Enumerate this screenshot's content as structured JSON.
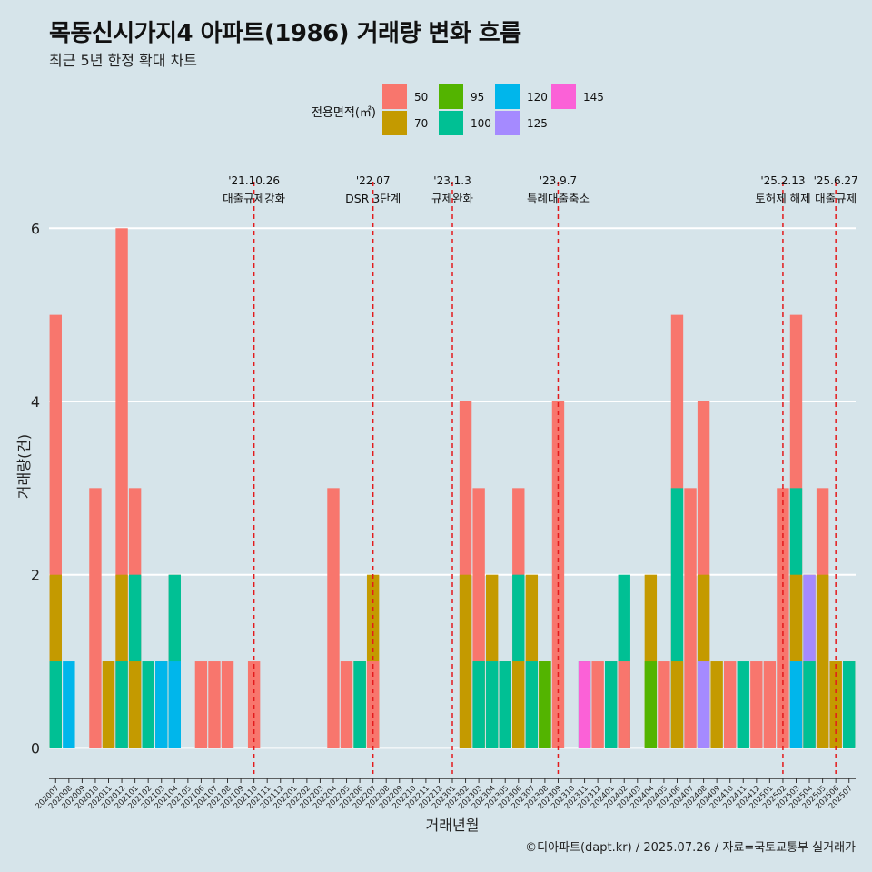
{
  "chart_data": {
    "type": "bar",
    "title": "목동신시가지4 아파트(1986) 거래량 변화 흐름",
    "subtitle": "최근 5년 한정 확대 차트",
    "xlabel": "거래년월",
    "ylabel": "거래량(건)",
    "caption": "©디아파트(dapt.kr) / 2025.07.26 / 자료=국토교통부 실거래가",
    "ylim": [
      -0.3,
      6.8
    ],
    "yticks": [
      0,
      2,
      4,
      6
    ],
    "legend": {
      "title": "전용면적(㎡)",
      "position": "top",
      "items": [
        {
          "label": "50",
          "color": "#f8766d"
        },
        {
          "label": "70",
          "color": "#c49a00"
        },
        {
          "label": "95",
          "color": "#53b400"
        },
        {
          "label": "100",
          "color": "#00c094"
        },
        {
          "label": "120",
          "color": "#00b6eb"
        },
        {
          "label": "125",
          "color": "#a58aff"
        },
        {
          "label": "145",
          "color": "#fb61d7"
        }
      ]
    },
    "categories": [
      "202007",
      "202008",
      "202009",
      "202010",
      "202011",
      "202012",
      "202101",
      "202102",
      "202103",
      "202104",
      "202105",
      "202106",
      "202107",
      "202108",
      "202109",
      "202110",
      "202111",
      "202112",
      "202201",
      "202202",
      "202203",
      "202204",
      "202205",
      "202206",
      "202207",
      "202208",
      "202209",
      "202210",
      "202211",
      "202212",
      "202301",
      "202302",
      "202303",
      "202304",
      "202305",
      "202306",
      "202307",
      "202308",
      "202309",
      "202310",
      "202311",
      "202312",
      "202401",
      "202402",
      "202403",
      "202404",
      "202405",
      "202406",
      "202407",
      "202408",
      "202409",
      "202410",
      "202411",
      "202412",
      "202501",
      "202502",
      "202503",
      "202504",
      "202505",
      "202506",
      "202507"
    ],
    "bars": [
      {
        "month": "202007",
        "values": [
          [
            "50",
            5
          ],
          [
            "70",
            2
          ],
          [
            "100",
            1
          ]
        ]
      },
      {
        "month": "202008",
        "values": [
          [
            "120",
            1
          ]
        ]
      },
      {
        "month": "202010",
        "values": [
          [
            "50",
            3
          ]
        ]
      },
      {
        "month": "202011",
        "values": [
          [
            "50",
            1
          ],
          [
            "70",
            1
          ]
        ]
      },
      {
        "month": "202012",
        "values": [
          [
            "50",
            6
          ],
          [
            "70",
            2
          ],
          [
            "100",
            1
          ]
        ]
      },
      {
        "month": "202101",
        "values": [
          [
            "50",
            3
          ],
          [
            "70",
            1
          ],
          [
            "100",
            2
          ]
        ]
      },
      {
        "month": "202102",
        "values": [
          [
            "100",
            1
          ]
        ]
      },
      {
        "month": "202103",
        "values": [
          [
            "50",
            1
          ],
          [
            "70",
            1
          ],
          [
            "120",
            1
          ]
        ]
      },
      {
        "month": "202104",
        "values": [
          [
            "50",
            2
          ],
          [
            "100",
            2
          ],
          [
            "120",
            1
          ]
        ]
      },
      {
        "month": "202106",
        "values": [
          [
            "50",
            1
          ]
        ]
      },
      {
        "month": "202107",
        "values": [
          [
            "50",
            1
          ]
        ]
      },
      {
        "month": "202108",
        "values": [
          [
            "50",
            1
          ]
        ]
      },
      {
        "month": "202110",
        "values": [
          [
            "50",
            1
          ]
        ]
      },
      {
        "month": "202204",
        "values": [
          [
            "50",
            3
          ]
        ]
      },
      {
        "month": "202205",
        "values": [
          [
            "50",
            1
          ]
        ]
      },
      {
        "month": "202206",
        "values": [
          [
            "70",
            1
          ],
          [
            "95",
            1
          ],
          [
            "100",
            1
          ]
        ]
      },
      {
        "month": "202207",
        "values": [
          [
            "50",
            1
          ],
          [
            "70",
            2
          ]
        ]
      },
      {
        "month": "202302",
        "values": [
          [
            "50",
            4
          ],
          [
            "70",
            2
          ]
        ]
      },
      {
        "month": "202303",
        "values": [
          [
            "50",
            3
          ],
          [
            "70",
            1
          ],
          [
            "100",
            1
          ]
        ]
      },
      {
        "month": "202304",
        "values": [
          [
            "50",
            1
          ],
          [
            "70",
            2
          ],
          [
            "100",
            1
          ]
        ]
      },
      {
        "month": "202305",
        "values": [
          [
            "50",
            1
          ],
          [
            "70",
            1
          ],
          [
            "100",
            1
          ]
        ]
      },
      {
        "month": "202306",
        "values": [
          [
            "50",
            3
          ],
          [
            "70",
            1
          ],
          [
            "100",
            2
          ]
        ]
      },
      {
        "month": "202307",
        "values": [
          [
            "50",
            1
          ],
          [
            "70",
            2
          ],
          [
            "100",
            1
          ]
        ]
      },
      {
        "month": "202308",
        "values": [
          [
            "50",
            1
          ],
          [
            "70",
            1
          ],
          [
            "95",
            1
          ]
        ]
      },
      {
        "month": "202309",
        "values": [
          [
            "50",
            4
          ]
        ]
      },
      {
        "month": "202311",
        "values": [
          [
            "100",
            1
          ],
          [
            "145",
            1
          ]
        ]
      },
      {
        "month": "202312",
        "values": [
          [
            "50",
            1
          ]
        ]
      },
      {
        "month": "202401",
        "values": [
          [
            "50",
            1
          ],
          [
            "100",
            1
          ]
        ]
      },
      {
        "month": "202402",
        "values": [
          [
            "50",
            1
          ],
          [
            "100",
            2
          ]
        ]
      },
      {
        "month": "202404",
        "values": [
          [
            "70",
            2
          ],
          [
            "95",
            1
          ]
        ]
      },
      {
        "month": "202405",
        "values": [
          [
            "50",
            1
          ]
        ]
      },
      {
        "month": "202406",
        "values": [
          [
            "50",
            5
          ],
          [
            "70",
            1
          ],
          [
            "100",
            3
          ]
        ]
      },
      {
        "month": "202407",
        "values": [
          [
            "50",
            3
          ]
        ]
      },
      {
        "month": "202408",
        "values": [
          [
            "50",
            4
          ],
          [
            "70",
            2
          ],
          [
            "125",
            1
          ]
        ]
      },
      {
        "month": "202409",
        "values": [
          [
            "70",
            1
          ]
        ]
      },
      {
        "month": "202410",
        "values": [
          [
            "50",
            1
          ]
        ]
      },
      {
        "month": "202411",
        "values": [
          [
            "100",
            1
          ]
        ]
      },
      {
        "month": "202412",
        "values": [
          [
            "50",
            1
          ]
        ]
      },
      {
        "month": "202501",
        "values": [
          [
            "50",
            1
          ]
        ]
      },
      {
        "month": "202502",
        "values": [
          [
            "50",
            3
          ]
        ]
      },
      {
        "month": "202503",
        "values": [
          [
            "50",
            5
          ],
          [
            "70",
            2
          ],
          [
            "100",
            3
          ],
          [
            "120",
            1
          ]
        ]
      },
      {
        "month": "202504",
        "values": [
          [
            "50",
            1
          ],
          [
            "70",
            2
          ],
          [
            "100",
            1
          ],
          [
            "125",
            2
          ]
        ]
      },
      {
        "month": "202505",
        "values": [
          [
            "50",
            3
          ],
          [
            "70",
            2
          ]
        ]
      },
      {
        "month": "202506",
        "values": [
          [
            "50",
            1
          ],
          [
            "70",
            1
          ]
        ]
      },
      {
        "month": "202507",
        "values": [
          [
            "50",
            1
          ],
          [
            "70",
            1
          ],
          [
            "100",
            1
          ]
        ]
      }
    ],
    "annotations": [
      {
        "month": "202110",
        "date": "'21.10.26",
        "label": "대출규제강화"
      },
      {
        "month": "202207",
        "date": "'22.07",
        "label": "DSR 3단계"
      },
      {
        "month": "202301",
        "date": "'23.1.3",
        "label": "규제완화"
      },
      {
        "month": "202309",
        "date": "'23.9.7",
        "label": "특례대출축소"
      },
      {
        "month": "202502",
        "date": "'25.2.13",
        "label": "토허제 해제"
      },
      {
        "month": "202506",
        "date": "'25.6.27",
        "label": "대출규제"
      }
    ]
  }
}
